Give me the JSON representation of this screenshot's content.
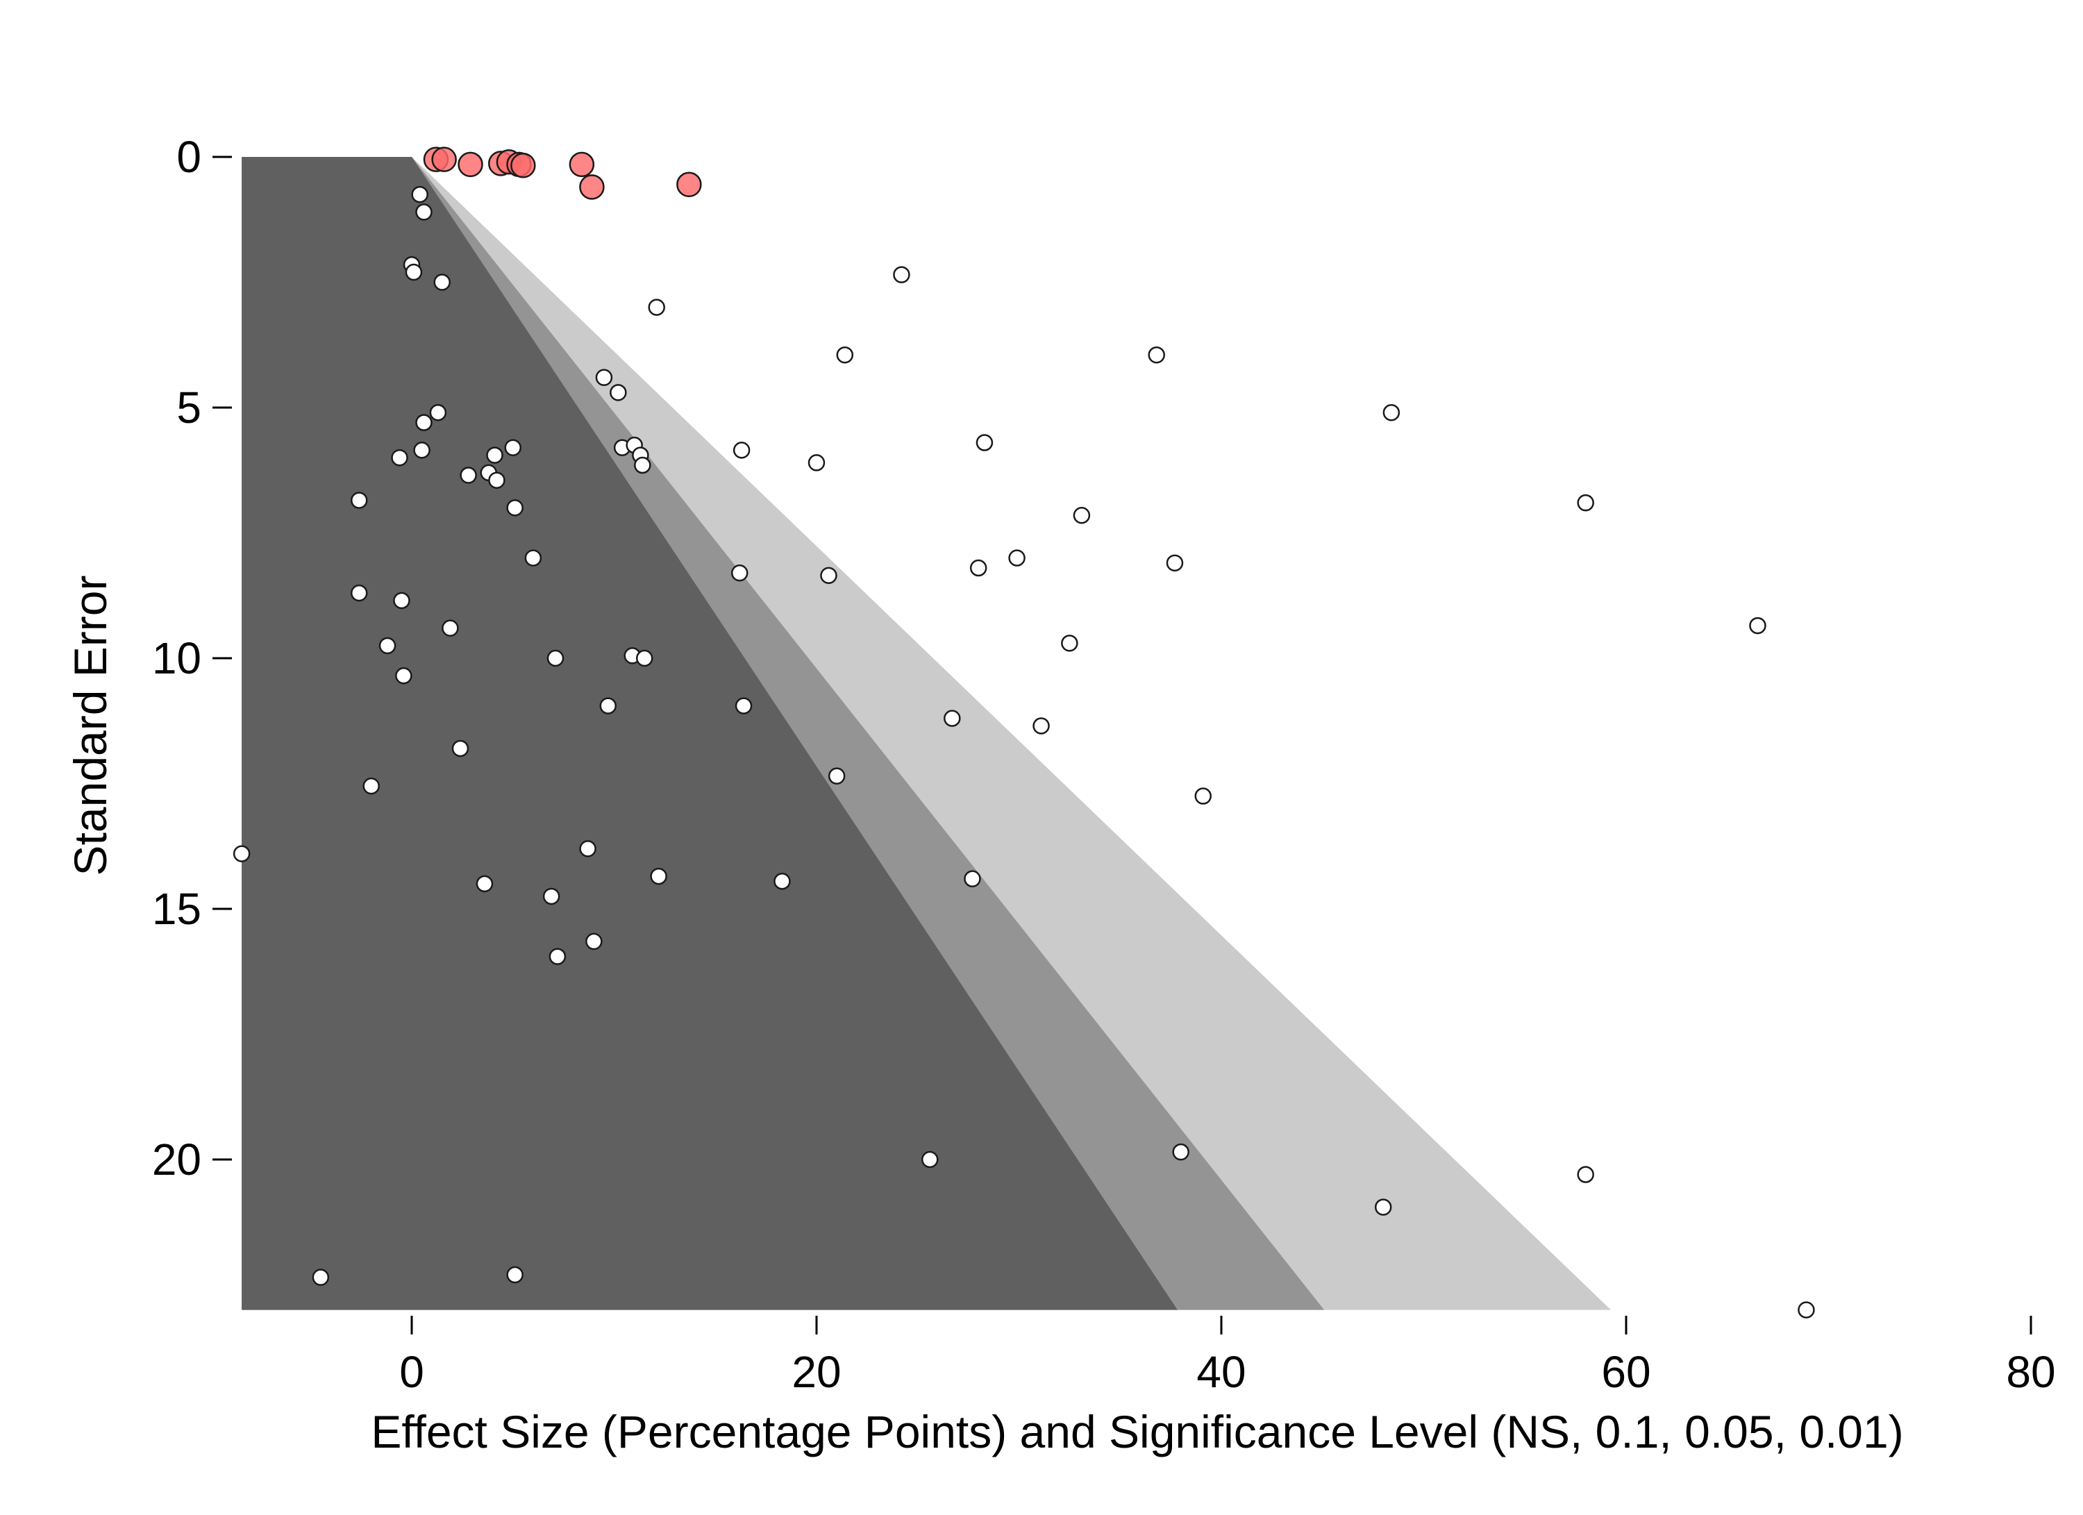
{
  "chart_data": {
    "type": "scatter",
    "title": "",
    "xlabel": "Effect Size (Percentage Points) and Significance Level (NS, 0.1, 0.05, 0.01)",
    "ylabel": "Standard Error",
    "xlim": [
      -8.4,
      80
    ],
    "ylim": [
      0,
      23
    ],
    "y_reversed": true,
    "xticks": [
      0,
      20,
      40,
      60,
      80
    ],
    "yticks": [
      0,
      5,
      10,
      15,
      20
    ],
    "grid": false,
    "significance_bands": [
      {
        "level": "NS",
        "z": 1.645,
        "color": "#606060"
      },
      {
        "level": "0.1",
        "z": 1.96,
        "color": "#949494"
      },
      {
        "level": "0.05",
        "z": 2.576,
        "color": "#cbcbcb"
      }
    ],
    "series": [
      {
        "marker_color": "#ff6b6b",
        "marker_size": "large",
        "points": [
          {
            "x": 1.2,
            "y": 0.05
          },
          {
            "x": 1.6,
            "y": 0.05
          },
          {
            "x": 2.9,
            "y": 0.15
          },
          {
            "x": 4.4,
            "y": 0.13
          },
          {
            "x": 4.8,
            "y": 0.1
          },
          {
            "x": 5.3,
            "y": 0.15
          },
          {
            "x": 5.5,
            "y": 0.17
          },
          {
            "x": 8.4,
            "y": 0.15
          },
          {
            "x": 8.9,
            "y": 0.6
          },
          {
            "x": 13.7,
            "y": 0.55
          }
        ]
      },
      {
        "marker_color": "#ffffff",
        "marker_size": "small",
        "points": [
          {
            "x": 0.4,
            "y": 0.75
          },
          {
            "x": 0.6,
            "y": 1.1
          },
          {
            "x": 0.0,
            "y": 2.15
          },
          {
            "x": 0.1,
            "y": 2.3
          },
          {
            "x": 1.5,
            "y": 2.5
          },
          {
            "x": 24.2,
            "y": 2.35
          },
          {
            "x": 12.1,
            "y": 3.0
          },
          {
            "x": 21.4,
            "y": 3.95
          },
          {
            "x": 36.8,
            "y": 3.95
          },
          {
            "x": 9.5,
            "y": 4.4
          },
          {
            "x": 10.2,
            "y": 4.7
          },
          {
            "x": 48.4,
            "y": 5.1
          },
          {
            "x": 1.3,
            "y": 5.1
          },
          {
            "x": 0.6,
            "y": 5.3
          },
          {
            "x": 10.4,
            "y": 5.8
          },
          {
            "x": 11.0,
            "y": 5.75
          },
          {
            "x": 11.3,
            "y": 5.95
          },
          {
            "x": 11.4,
            "y": 6.15
          },
          {
            "x": 5.0,
            "y": 5.8
          },
          {
            "x": 4.1,
            "y": 5.95
          },
          {
            "x": 0.5,
            "y": 5.85
          },
          {
            "x": -0.6,
            "y": 6.0
          },
          {
            "x": 2.8,
            "y": 6.35
          },
          {
            "x": 3.8,
            "y": 6.3
          },
          {
            "x": 4.2,
            "y": 6.45
          },
          {
            "x": 16.3,
            "y": 5.85
          },
          {
            "x": 20.0,
            "y": 6.1
          },
          {
            "x": 28.3,
            "y": 5.7
          },
          {
            "x": -2.6,
            "y": 6.85
          },
          {
            "x": 5.1,
            "y": 7.0
          },
          {
            "x": 58.0,
            "y": 6.9
          },
          {
            "x": 33.1,
            "y": 7.15
          },
          {
            "x": 6.0,
            "y": 8.0
          },
          {
            "x": 29.9,
            "y": 8.0
          },
          {
            "x": 37.7,
            "y": 8.1
          },
          {
            "x": 28.0,
            "y": 8.2
          },
          {
            "x": 16.2,
            "y": 8.3
          },
          {
            "x": 20.6,
            "y": 8.35
          },
          {
            "x": -2.6,
            "y": 8.7
          },
          {
            "x": -0.5,
            "y": 8.85
          },
          {
            "x": 1.9,
            "y": 9.4
          },
          {
            "x": 66.5,
            "y": 9.35
          },
          {
            "x": -1.2,
            "y": 9.75
          },
          {
            "x": 32.5,
            "y": 9.7
          },
          {
            "x": 7.1,
            "y": 10.0
          },
          {
            "x": 10.9,
            "y": 9.95
          },
          {
            "x": 11.5,
            "y": 10.0
          },
          {
            "x": -0.4,
            "y": 10.35
          },
          {
            "x": 9.7,
            "y": 10.95
          },
          {
            "x": 16.4,
            "y": 10.95
          },
          {
            "x": 26.7,
            "y": 11.2
          },
          {
            "x": 31.1,
            "y": 11.35
          },
          {
            "x": 2.4,
            "y": 11.8
          },
          {
            "x": 21.0,
            "y": 12.35
          },
          {
            "x": -2.0,
            "y": 12.55
          },
          {
            "x": 39.1,
            "y": 12.75
          },
          {
            "x": -8.4,
            "y": 13.9
          },
          {
            "x": 8.7,
            "y": 13.8
          },
          {
            "x": 3.6,
            "y": 14.5
          },
          {
            "x": 12.2,
            "y": 14.35
          },
          {
            "x": 18.3,
            "y": 14.45
          },
          {
            "x": 27.7,
            "y": 14.4
          },
          {
            "x": 6.9,
            "y": 14.75
          },
          {
            "x": 9.0,
            "y": 15.65
          },
          {
            "x": 7.2,
            "y": 15.95
          },
          {
            "x": 25.6,
            "y": 20.0
          },
          {
            "x": 38.0,
            "y": 19.85
          },
          {
            "x": 58.0,
            "y": 20.3
          },
          {
            "x": 48.0,
            "y": 20.95
          },
          {
            "x": -4.5,
            "y": 22.35
          },
          {
            "x": 5.1,
            "y": 22.3
          },
          {
            "x": 68.9,
            "y": 23.0
          }
        ]
      }
    ]
  }
}
